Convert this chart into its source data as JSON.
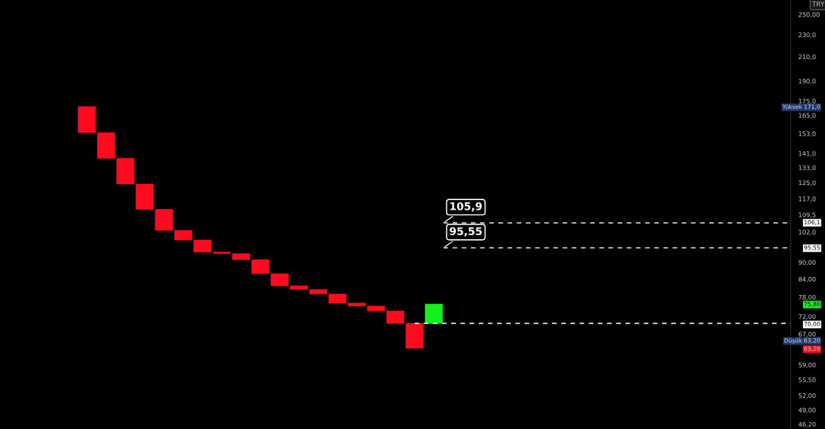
{
  "chart_data": {
    "type": "candlestick",
    "categories": [
      null,
      null,
      null,
      null,
      null,
      null,
      null,
      null,
      null,
      null,
      null,
      null,
      null,
      null,
      null,
      null,
      null,
      null,
      null,
      null,
      null,
      null,
      null,
      null,
      null,
      null,
      null,
      null,
      null,
      null,
      null,
      null,
      null,
      null,
      null,
      null,
      null,
      null,
      null,
      null,
      null
    ],
    "ohlc": [
      null,
      null,
      null,
      null,
      [
        171,
        171,
        153.6,
        153.6
      ],
      [
        153.6,
        153.6,
        138.2,
        138.2
      ],
      [
        138.2,
        138.2,
        124.3,
        124.3
      ],
      [
        124.3,
        124.3,
        112,
        112
      ],
      [
        112,
        112,
        102.7,
        102.7
      ],
      [
        102.7,
        102.7,
        98.7,
        98.7
      ],
      [
        98.7,
        98.7,
        93.9,
        93.9
      ],
      [
        93.9,
        93.9,
        93.3,
        93.3
      ],
      [
        93.3,
        93.3,
        91,
        91
      ],
      [
        91,
        91,
        85.9,
        85.9
      ],
      [
        85.9,
        85.9,
        81.7,
        81.7
      ],
      [
        81.7,
        81.7,
        80.5,
        80.5
      ],
      [
        80.5,
        80.5,
        79,
        79
      ],
      [
        79,
        79,
        76.1,
        76.1
      ],
      [
        76.1,
        76.1,
        75.2,
        75.2
      ],
      [
        75.2,
        75.2,
        73.7,
        73.7
      ],
      [
        73.7,
        73.7,
        70,
        70
      ],
      [
        70,
        70,
        63.2,
        63.2
      ],
      [
        70,
        75.8,
        70,
        75.8
      ],
      null,
      null,
      null,
      null,
      null,
      null,
      null,
      null,
      null,
      null,
      null,
      null,
      null,
      null,
      null,
      null,
      null,
      null
    ],
    "colors": [
      null,
      null,
      null,
      null,
      "#ff0a1f",
      "#ff0a1f",
      "#ff0a1f",
      "#ff0a1f",
      "#ff0a1f",
      "#ff0a1f",
      "#ff0a1f",
      "#ff0a1f",
      "#ff0a1f",
      "#ff0a1f",
      "#ff0a1f",
      "#ff0a1f",
      "#ff0a1f",
      "#ff0a1f",
      "#ff0a1f",
      "#ff0a1f",
      "#ff0a1f",
      "#ff0a1f",
      "#12f01e",
      null,
      null,
      null,
      null,
      null,
      null,
      null,
      null,
      null,
      null,
      null,
      null,
      null,
      null,
      null,
      null,
      null,
      null
    ],
    "log": true,
    "ylim": [
      45.3,
      265.3
    ],
    "yticks": [
      {
        "value": 250,
        "label": "250,00"
      },
      {
        "value": 230,
        "label": "230,0"
      },
      {
        "value": 210,
        "label": "210,0"
      },
      {
        "value": 190,
        "label": "190,0"
      },
      {
        "value": 175,
        "label": "175,0"
      },
      {
        "value": 165,
        "label": "165,0"
      },
      {
        "value": 153,
        "label": "153,0"
      },
      {
        "value": 141,
        "label": "141,0"
      },
      {
        "value": 133,
        "label": "133,0"
      },
      {
        "value": 125,
        "label": "125,0"
      },
      {
        "value": 117,
        "label": "117,0"
      },
      {
        "value": 109.5,
        "label": "109,5"
      },
      {
        "value": 102,
        "label": "102,0"
      },
      {
        "value": 90,
        "label": "90,00"
      },
      {
        "value": 84,
        "label": "84,00"
      },
      {
        "value": 78,
        "label": "78,00"
      },
      {
        "value": 72,
        "label": "72,00"
      },
      {
        "value": 67,
        "label": "67,00"
      },
      {
        "value": 59,
        "label": "59,00"
      },
      {
        "value": 55.5,
        "label": "55,50"
      },
      {
        "value": 52,
        "label": "52,00"
      },
      {
        "value": 49,
        "label": "49,00"
      },
      {
        "value": 46.2,
        "label": "46,20"
      }
    ],
    "tick_labels": "y",
    "ref_lines": [
      {
        "axis": "y",
        "value": 105.9,
        "label": "105,9",
        "color": "#ffffff",
        "line_style": "dashed"
      },
      {
        "axis": "y",
        "value": 95.55,
        "label": "95,55",
        "color": "#ffffff",
        "line_style": "dashed"
      },
      {
        "axis": "y",
        "value": 70,
        "color": "#ffffff",
        "line_style": "dashed"
      }
    ],
    "annotations": [
      "TRY",
      "Yüksek 171,0",
      "106,1",
      "95,55",
      "75,80",
      "70,00",
      "Düşük 63,20",
      "63,20"
    ]
  }
}
